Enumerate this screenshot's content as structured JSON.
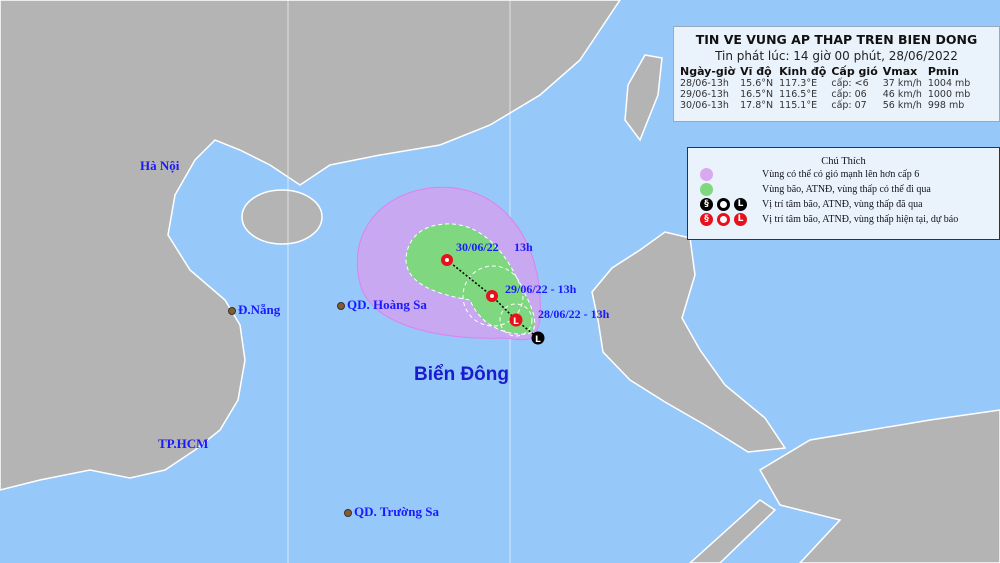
{
  "info": {
    "title": "TIN VE VUNG AP THAP TREN BIEN DONG",
    "issued": "Tin phát lúc: 14 giờ 00 phút, 28/06/2022",
    "headers": [
      "Ngày-giờ",
      "Vĩ độ",
      "Kinh độ",
      "Cấp gió",
      "Vmax",
      "Pmin"
    ],
    "rows": [
      [
        "28/06-13h",
        "15.6°N",
        "117.3°E",
        "cấp: <6",
        "37 km/h",
        "1004 mb"
      ],
      [
        "29/06-13h",
        "16.5°N",
        "116.5°E",
        "cấp: 06",
        "46 km/h",
        "1000 mb"
      ],
      [
        "30/06-13h",
        "17.8°N",
        "115.1°E",
        "cấp: 07",
        "56 km/h",
        "998 mb"
      ]
    ]
  },
  "legend": {
    "title": "Chú Thích",
    "items": [
      {
        "symbol": "purple-circle",
        "label": "Vùng có thể có gió mạnh lên hơn cấp 6"
      },
      {
        "symbol": "green-circle",
        "label": "Vùng bão, ATNĐ, vùng thấp có thể đi qua"
      },
      {
        "symbol": "black-storm-symbols",
        "label": "Vị trí tâm bão, ATNĐ, vùng thấp đã qua"
      },
      {
        "symbol": "red-storm-symbols",
        "label": "Vị trí tâm bão, ATNĐ, vùng thấp hiện tại, dự báo"
      }
    ]
  },
  "places": {
    "hanoi": "Hà Nội",
    "danang": "Đ.Nẵng",
    "hcm": "TP.HCM",
    "hoangsa": "QD. Hoàng Sa",
    "truongsa": "QD. Trường Sa",
    "sea": "Biển Đông"
  },
  "track": [
    {
      "label": "28/06/22 - 13h"
    },
    {
      "label": "29/06/22 - 13h"
    },
    {
      "label": "30/06/22",
      "hour": "13h"
    }
  ],
  "colors": {
    "ocean": "#96c8fa",
    "land": "#b4b4b4",
    "wind_zone": "#c8a8f0",
    "track_zone": "#7fd87f",
    "forecast": "#e8101a"
  }
}
